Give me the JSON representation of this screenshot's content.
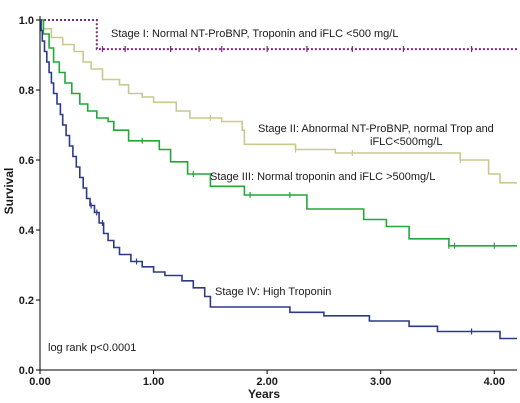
{
  "chart_data": {
    "type": "line",
    "step": true,
    "title": "",
    "xlabel": "Years",
    "ylabel": "Survival",
    "xlim": [
      0,
      4.2
    ],
    "ylim": [
      0,
      1.0
    ],
    "x_ticks": [
      0,
      1,
      2,
      3,
      4
    ],
    "x_tick_labels": [
      "0.00",
      "1.00",
      "2.00",
      "3.00",
      "4.00"
    ],
    "y_ticks": [
      0,
      0.2,
      0.4,
      0.6,
      0.8,
      1.0
    ],
    "y_tick_labels": [
      "0.0",
      "0.2",
      "0.4",
      "0.6",
      "0.8",
      "1.0"
    ],
    "grid": false,
    "legend": "none",
    "annotation": "log rank p<0.0001",
    "series": [
      {
        "name": "Stage I: Normal NT-ProBNP, Troponin and iFLC <500 mg/L",
        "color": "#7b2a7b",
        "dashed": true,
        "points": [
          [
            0,
            1.0
          ],
          [
            0.5,
            1.0
          ],
          [
            0.5,
            0.917
          ],
          [
            4.2,
            0.917
          ]
        ],
        "censored_x": [
          0.55,
          0.75,
          1.15,
          1.4,
          1.6,
          2.0,
          2.35,
          2.75,
          3.2,
          3.8
        ]
      },
      {
        "name": "Stage II: Abnormal NT-ProBNP, normal Trop and iFLC<500mg/L",
        "color": "#c9c98c",
        "dashed": false,
        "points": [
          [
            0,
            1.0
          ],
          [
            0.03,
            1.0
          ],
          [
            0.03,
            0.975
          ],
          [
            0.1,
            0.975
          ],
          [
            0.1,
            0.95
          ],
          [
            0.2,
            0.95
          ],
          [
            0.2,
            0.93
          ],
          [
            0.3,
            0.93
          ],
          [
            0.3,
            0.91
          ],
          [
            0.38,
            0.91
          ],
          [
            0.38,
            0.88
          ],
          [
            0.45,
            0.88
          ],
          [
            0.45,
            0.86
          ],
          [
            0.55,
            0.86
          ],
          [
            0.55,
            0.83
          ],
          [
            0.7,
            0.83
          ],
          [
            0.7,
            0.815
          ],
          [
            0.78,
            0.815
          ],
          [
            0.78,
            0.79
          ],
          [
            0.9,
            0.79
          ],
          [
            0.9,
            0.78
          ],
          [
            1.0,
            0.78
          ],
          [
            1.0,
            0.765
          ],
          [
            1.2,
            0.765
          ],
          [
            1.2,
            0.74
          ],
          [
            1.32,
            0.74
          ],
          [
            1.32,
            0.72
          ],
          [
            1.6,
            0.72
          ],
          [
            1.6,
            0.71
          ],
          [
            1.78,
            0.71
          ],
          [
            1.78,
            0.685
          ],
          [
            1.8,
            0.685
          ],
          [
            1.8,
            0.645
          ],
          [
            2.25,
            0.645
          ],
          [
            2.25,
            0.63
          ],
          [
            2.6,
            0.63
          ],
          [
            2.6,
            0.62
          ],
          [
            3.7,
            0.62
          ],
          [
            3.7,
            0.6
          ],
          [
            3.95,
            0.6
          ],
          [
            3.95,
            0.56
          ],
          [
            4.05,
            0.56
          ],
          [
            4.05,
            0.535
          ],
          [
            4.2,
            0.535
          ]
        ],
        "censored_x": [
          1.5,
          2.25,
          2.75,
          3.7
        ]
      },
      {
        "name": "Stage III: Normal troponin and iFLC >500mg/L",
        "color": "#22a83a",
        "dashed": false,
        "points": [
          [
            0,
            1.0
          ],
          [
            0.03,
            1.0
          ],
          [
            0.03,
            0.96
          ],
          [
            0.08,
            0.96
          ],
          [
            0.08,
            0.92
          ],
          [
            0.12,
            0.92
          ],
          [
            0.12,
            0.88
          ],
          [
            0.17,
            0.88
          ],
          [
            0.17,
            0.85
          ],
          [
            0.22,
            0.85
          ],
          [
            0.22,
            0.82
          ],
          [
            0.28,
            0.82
          ],
          [
            0.28,
            0.79
          ],
          [
            0.35,
            0.79
          ],
          [
            0.35,
            0.76
          ],
          [
            0.42,
            0.76
          ],
          [
            0.42,
            0.74
          ],
          [
            0.5,
            0.74
          ],
          [
            0.5,
            0.72
          ],
          [
            0.6,
            0.72
          ],
          [
            0.6,
            0.71
          ],
          [
            0.65,
            0.71
          ],
          [
            0.65,
            0.685
          ],
          [
            0.78,
            0.685
          ],
          [
            0.78,
            0.655
          ],
          [
            1.05,
            0.655
          ],
          [
            1.05,
            0.63
          ],
          [
            1.15,
            0.63
          ],
          [
            1.15,
            0.595
          ],
          [
            1.3,
            0.595
          ],
          [
            1.3,
            0.56
          ],
          [
            1.5,
            0.56
          ],
          [
            1.5,
            0.525
          ],
          [
            1.8,
            0.525
          ],
          [
            1.8,
            0.5
          ],
          [
            2.35,
            0.5
          ],
          [
            2.35,
            0.46
          ],
          [
            2.85,
            0.46
          ],
          [
            2.85,
            0.43
          ],
          [
            3.05,
            0.43
          ],
          [
            3.05,
            0.41
          ],
          [
            3.25,
            0.41
          ],
          [
            3.25,
            0.375
          ],
          [
            3.6,
            0.375
          ],
          [
            3.6,
            0.355
          ],
          [
            4.2,
            0.355
          ]
        ],
        "censored_x": [
          0.9,
          1.35,
          1.85,
          2.2,
          3.6,
          3.65,
          4.0
        ]
      },
      {
        "name": "Stage IV: High Troponin",
        "color": "#2d3a8c",
        "dashed": false,
        "points": [
          [
            0,
            1.0
          ],
          [
            0.01,
            1.0
          ],
          [
            0.01,
            0.97
          ],
          [
            0.02,
            0.97
          ],
          [
            0.02,
            0.94
          ],
          [
            0.04,
            0.94
          ],
          [
            0.04,
            0.91
          ],
          [
            0.06,
            0.91
          ],
          [
            0.06,
            0.88
          ],
          [
            0.08,
            0.88
          ],
          [
            0.08,
            0.85
          ],
          [
            0.1,
            0.85
          ],
          [
            0.1,
            0.82
          ],
          [
            0.12,
            0.82
          ],
          [
            0.12,
            0.79
          ],
          [
            0.15,
            0.79
          ],
          [
            0.15,
            0.76
          ],
          [
            0.18,
            0.76
          ],
          [
            0.18,
            0.73
          ],
          [
            0.2,
            0.73
          ],
          [
            0.2,
            0.7
          ],
          [
            0.23,
            0.7
          ],
          [
            0.23,
            0.67
          ],
          [
            0.26,
            0.67
          ],
          [
            0.26,
            0.64
          ],
          [
            0.29,
            0.64
          ],
          [
            0.29,
            0.61
          ],
          [
            0.32,
            0.61
          ],
          [
            0.32,
            0.58
          ],
          [
            0.35,
            0.58
          ],
          [
            0.35,
            0.55
          ],
          [
            0.38,
            0.55
          ],
          [
            0.38,
            0.52
          ],
          [
            0.41,
            0.52
          ],
          [
            0.41,
            0.49
          ],
          [
            0.44,
            0.49
          ],
          [
            0.44,
            0.47
          ],
          [
            0.48,
            0.47
          ],
          [
            0.48,
            0.45
          ],
          [
            0.52,
            0.45
          ],
          [
            0.52,
            0.42
          ],
          [
            0.56,
            0.42
          ],
          [
            0.56,
            0.39
          ],
          [
            0.6,
            0.39
          ],
          [
            0.6,
            0.37
          ],
          [
            0.65,
            0.37
          ],
          [
            0.65,
            0.35
          ],
          [
            0.7,
            0.35
          ],
          [
            0.7,
            0.33
          ],
          [
            0.8,
            0.33
          ],
          [
            0.8,
            0.31
          ],
          [
            0.9,
            0.31
          ],
          [
            0.9,
            0.295
          ],
          [
            1.0,
            0.295
          ],
          [
            1.0,
            0.28
          ],
          [
            1.1,
            0.28
          ],
          [
            1.1,
            0.27
          ],
          [
            1.25,
            0.27
          ],
          [
            1.25,
            0.255
          ],
          [
            1.35,
            0.255
          ],
          [
            1.35,
            0.235
          ],
          [
            1.45,
            0.235
          ],
          [
            1.45,
            0.21
          ],
          [
            1.5,
            0.21
          ],
          [
            1.5,
            0.18
          ],
          [
            2.2,
            0.18
          ],
          [
            2.2,
            0.165
          ],
          [
            2.5,
            0.165
          ],
          [
            2.5,
            0.155
          ],
          [
            2.9,
            0.155
          ],
          [
            2.9,
            0.14
          ],
          [
            3.25,
            0.14
          ],
          [
            3.25,
            0.125
          ],
          [
            3.5,
            0.125
          ],
          [
            3.5,
            0.11
          ],
          [
            4.05,
            0.11
          ],
          [
            4.05,
            0.09
          ],
          [
            4.2,
            0.09
          ]
        ],
        "censored_x": [
          0.45,
          0.5,
          0.55,
          0.85,
          3.8
        ]
      }
    ],
    "labels": [
      {
        "text": "Stage I: Normal NT-ProBNP, Troponin and iFLC <500 mg/L",
        "series": 0
      },
      {
        "text": "Stage II: Abnormal NT-ProBNP, normal Trop and",
        "series": 1
      },
      {
        "text": "iFLC<500mg/L",
        "series": 1
      },
      {
        "text": "Stage III: Normal troponin and iFLC >500mg/L",
        "series": 2
      },
      {
        "text": "Stage IV: High Troponin",
        "series": 3
      }
    ]
  }
}
